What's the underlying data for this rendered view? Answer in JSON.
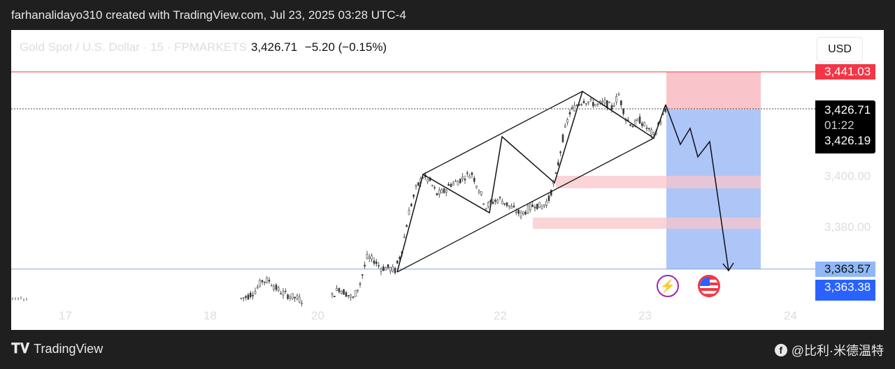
{
  "header": {
    "caption": "farhanalidayo310 created with TradingView.com, Jul 23, 2025 03:28 UTC-4"
  },
  "legend": {
    "symbol": "Gold Spot / U.S. Dollar · 15 · FPMARKETS",
    "price": "3,426.71",
    "change": "−5.20 (−0.15%)"
  },
  "currency_button": "USD",
  "price_scale": {
    "stop_loss": "3,441.03",
    "last_price": "3,426.71",
    "countdown": "01:22",
    "entry": "3,426.19",
    "ticks": [
      "3,400.00",
      "3,380.00"
    ],
    "target_light": "3,363.57",
    "target": "3,363.38"
  },
  "time_axis": [
    "17",
    "18",
    "20",
    "22",
    "23",
    "24"
  ],
  "colors": {
    "stop": "#f23645",
    "stop_zone": "#f9c5cb",
    "target_zone": "#adc6f7",
    "target": "#2962ff",
    "target_light": "#90b8f8",
    "zone": "#f9c5cb"
  },
  "chart_data": {
    "type": "candlestick",
    "symbol": "XAUUSD",
    "timeframe": "15",
    "ylim": [
      3345,
      3445
    ],
    "approx_price_path": [
      3352,
      3353,
      3355,
      3359,
      3359,
      3356,
      3354,
      3353,
      3352,
      3351,
      null,
      null,
      null,
      3353,
      3356,
      3354,
      3352,
      3358,
      3368,
      3367,
      3364,
      3364,
      3363,
      3371,
      3386,
      3395,
      3400,
      3398,
      3393,
      3394,
      3397,
      3398,
      3400,
      3401,
      3395,
      3388,
      3390,
      3391,
      3389,
      3387,
      3385,
      3387,
      3389,
      3388,
      3391,
      3400,
      3415,
      3425,
      3428,
      3430,
      3429,
      3428,
      3429,
      3427,
      3432,
      3423,
      3420,
      3422,
      3419,
      3416,
      3422,
      3427
    ],
    "levels": {
      "stop_loss": 3441.03,
      "entry": 3426.19,
      "take_profit": 3363.57
    }
  },
  "events": [
    {
      "icon": "lightning-icon"
    },
    {
      "icon": "us-flag-icon"
    }
  ],
  "footer": {
    "brand": "TradingView",
    "credit": "@比利·米德温特"
  }
}
